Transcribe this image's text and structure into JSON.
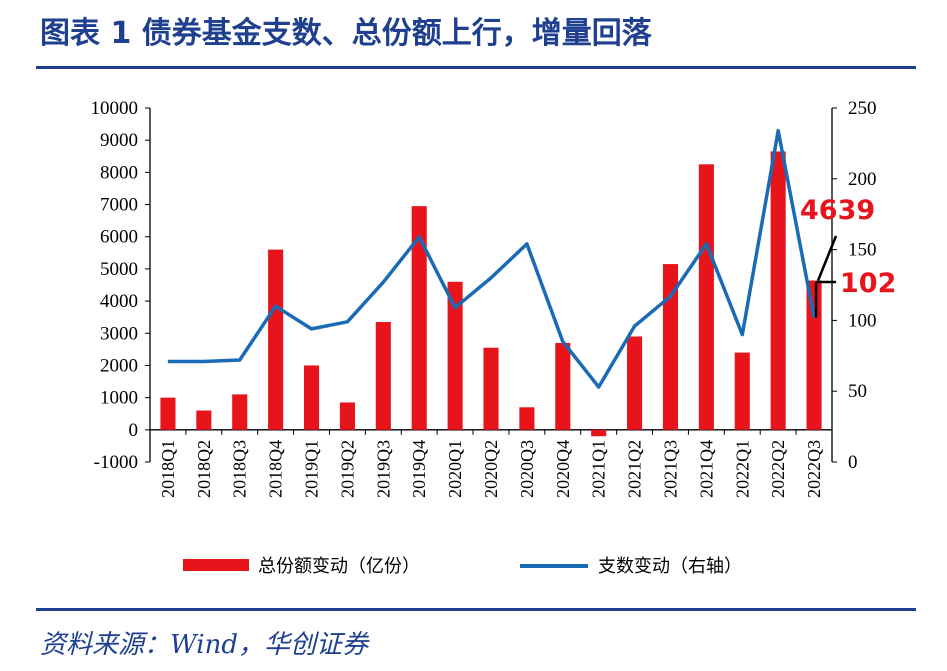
{
  "header": {
    "title": "图表 1  债券基金支数、总份额上行，增量回落"
  },
  "footer": {
    "source": "资料来源：Wind，华创证券"
  },
  "colors": {
    "title": "#1f3f8f",
    "bar": "#e8141b",
    "line": "#1a6bb5",
    "annotation": "#e8141b"
  },
  "chart_data": {
    "type": "bar+line",
    "categories": [
      "2018Q1",
      "2018Q2",
      "2018Q3",
      "2018Q4",
      "2019Q1",
      "2019Q2",
      "2019Q3",
      "2019Q4",
      "2020Q1",
      "2020Q2",
      "2020Q3",
      "2020Q4",
      "2021Q1",
      "2021Q2",
      "2021Q3",
      "2021Q4",
      "2022Q1",
      "2022Q2",
      "2022Q3"
    ],
    "series": [
      {
        "name": "总份额变动（亿份）",
        "type": "bar",
        "axis": "left",
        "values": [
          1000,
          600,
          1100,
          5600,
          2000,
          850,
          3350,
          6950,
          4600,
          2550,
          700,
          2700,
          -200,
          2900,
          5150,
          8250,
          2400,
          8650,
          4639
        ]
      },
      {
        "name": "支数变动（右轴）",
        "type": "line",
        "axis": "right",
        "values": [
          71,
          71,
          72,
          110,
          94,
          99,
          127,
          159,
          109,
          130,
          154,
          85,
          53,
          96,
          117,
          154,
          90,
          234,
          102
        ]
      }
    ],
    "yleft": {
      "range": [
        -1000,
        10000
      ],
      "ticks": [
        "-1000",
        "0",
        "1000",
        "2000",
        "3000",
        "4000",
        "5000",
        "6000",
        "7000",
        "8000",
        "9000",
        "10000"
      ]
    },
    "yright": {
      "range": [
        0,
        250
      ],
      "ticks": [
        "0",
        "50",
        "100",
        "150",
        "200",
        "250"
      ]
    },
    "annotations": [
      "4639",
      "102"
    ],
    "legend": "bottom",
    "grid": false
  }
}
